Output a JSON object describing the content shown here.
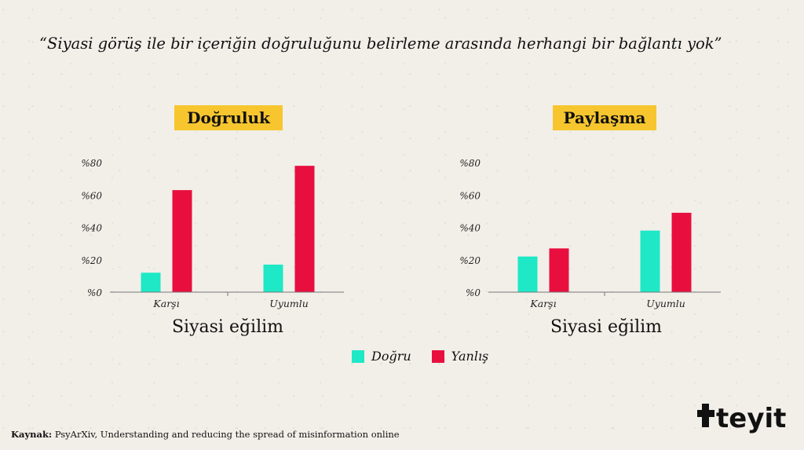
{
  "headline": "“Siyasi görüş ile bir içeriğin doğruluğunu belirleme arasında herhangi bir bağlantı yok”",
  "source": {
    "label": "Kaynak:",
    "text": "PsyArXiv, Understanding and reducing the spread of misinformation online"
  },
  "brand": {
    "name": "teyit"
  },
  "colors": {
    "dogru": "#1ee8c6",
    "yanlis": "#e80f3f",
    "badge": "#f7c62f"
  },
  "legend": [
    {
      "label": "Doğru",
      "color": "#1ee8c6"
    },
    {
      "label": "Yanlış",
      "color": "#e80f3f"
    }
  ],
  "chart_data": [
    {
      "type": "bar",
      "title": "Doğruluk",
      "xlabel": "Siyasi eğilim",
      "ylabel": "",
      "categories": [
        "Karşı",
        "Uyumlu"
      ],
      "series": [
        {
          "name": "Doğru",
          "values": [
            12,
            17
          ]
        },
        {
          "name": "Yanlış",
          "values": [
            63,
            78
          ]
        }
      ],
      "ylim": [
        0,
        80
      ],
      "yticks": [
        "%0",
        "%20",
        "%40",
        "%60",
        "%80"
      ],
      "grid": false
    },
    {
      "type": "bar",
      "title": "Paylaşma",
      "xlabel": "Siyasi eğilim",
      "ylabel": "",
      "categories": [
        "Karşı",
        "Uyumlu"
      ],
      "series": [
        {
          "name": "Doğru",
          "values": [
            22,
            38
          ]
        },
        {
          "name": "Yanlış",
          "values": [
            27,
            49
          ]
        }
      ],
      "ylim": [
        0,
        80
      ],
      "yticks": [
        "%0",
        "%20",
        "%40",
        "%60",
        "%80"
      ],
      "grid": false
    }
  ]
}
